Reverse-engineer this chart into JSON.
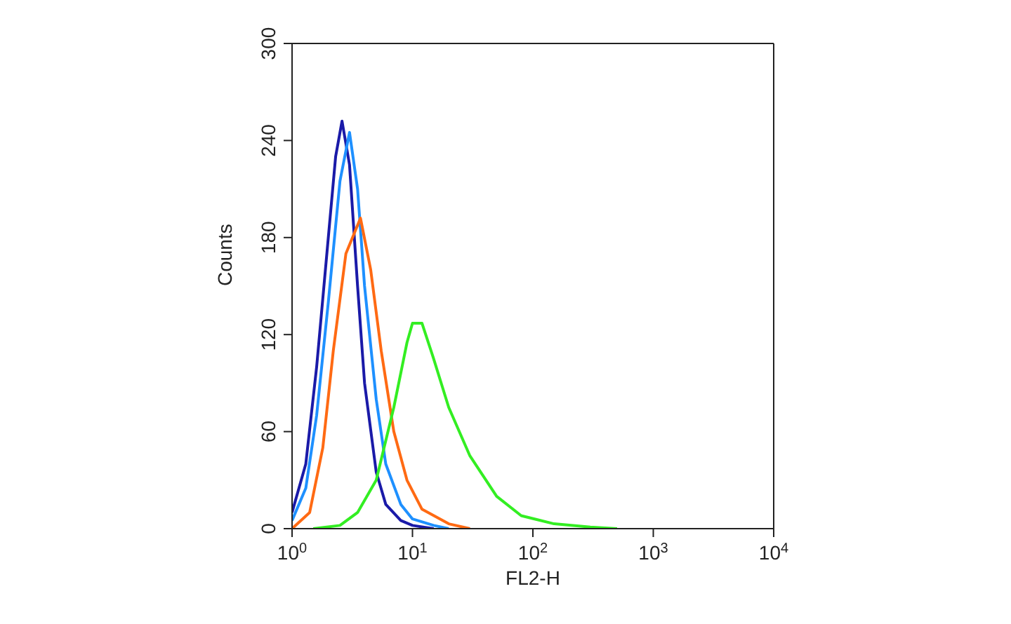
{
  "chart_data": {
    "type": "line",
    "xlabel": "FL2-H",
    "ylabel": "Counts",
    "log": "x",
    "xlim": [
      1,
      10000
    ],
    "ylim": [
      0,
      300
    ],
    "xticks": [
      {
        "value": 1,
        "label": "10$^{0}$"
      },
      {
        "value": 10,
        "label": "10$^{1}$"
      },
      {
        "value": 100,
        "label": "10$^{2}$"
      },
      {
        "value": 1000,
        "label": "10$^{3}$"
      },
      {
        "value": 10000,
        "label": "10$^{4}$"
      }
    ],
    "yticks": [
      0,
      60,
      120,
      180,
      240,
      300
    ],
    "grid": false,
    "legend": false,
    "marker": "none",
    "line_style": "solid",
    "series": [
      {
        "color": "#1a1aa8",
        "x": [
          1,
          1.3,
          1.6,
          2,
          2.3,
          2.6,
          3,
          3.5,
          4,
          5,
          6,
          8,
          10,
          15
        ],
        "values": [
          10,
          40,
          100,
          180,
          230,
          252,
          225,
          150,
          90,
          35,
          15,
          5,
          2,
          0
        ]
      },
      {
        "color": "#1e90ff",
        "x": [
          1,
          1.3,
          1.6,
          2,
          2.5,
          3,
          3.5,
          4,
          5,
          6,
          8,
          10,
          15,
          20
        ],
        "values": [
          5,
          25,
          70,
          140,
          215,
          245,
          210,
          150,
          80,
          40,
          15,
          6,
          2,
          0
        ]
      },
      {
        "color": "#ff6a13",
        "x": [
          1,
          1.4,
          1.8,
          2.2,
          2.8,
          3.7,
          4.5,
          5.5,
          7,
          9,
          12,
          20,
          30
        ],
        "values": [
          0,
          10,
          50,
          110,
          170,
          192,
          160,
          110,
          60,
          30,
          12,
          3,
          0
        ]
      },
      {
        "color": "#33ee22",
        "x": [
          1.5,
          2.5,
          3.5,
          5,
          7,
          9,
          10,
          12,
          15,
          20,
          30,
          50,
          80,
          150,
          300,
          500
        ],
        "values": [
          0,
          2,
          10,
          30,
          75,
          115,
          127,
          127,
          105,
          75,
          45,
          20,
          8,
          3,
          1,
          0
        ]
      }
    ]
  }
}
